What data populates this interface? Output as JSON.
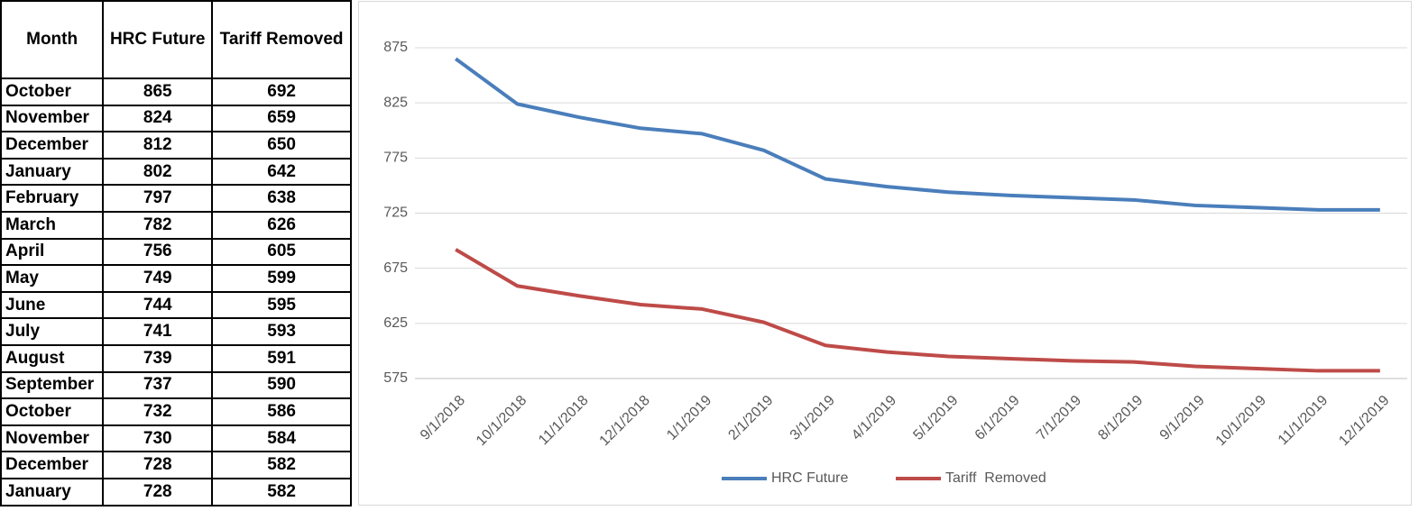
{
  "table": {
    "header": [
      "Month",
      "HRC Future",
      "Tariff Removed"
    ],
    "rows": [
      [
        "October",
        "865",
        "692"
      ],
      [
        "November",
        "824",
        "659"
      ],
      [
        "December",
        "812",
        "650"
      ],
      [
        "January",
        "802",
        "642"
      ],
      [
        "February",
        "797",
        "638"
      ],
      [
        "March",
        "782",
        "626"
      ],
      [
        "April",
        "756",
        "605"
      ],
      [
        "May",
        "749",
        "599"
      ],
      [
        "June",
        "744",
        "595"
      ],
      [
        "July",
        "741",
        "593"
      ],
      [
        "August",
        "739",
        "591"
      ],
      [
        "September",
        "737",
        "590"
      ],
      [
        "October",
        "732",
        "586"
      ],
      [
        "November",
        "730",
        "584"
      ],
      [
        "December",
        "728",
        "582"
      ],
      [
        "January",
        "728",
        "582"
      ]
    ]
  },
  "chart_data": {
    "type": "line",
    "categories": [
      "9/1/2018",
      "10/1/2018",
      "11/1/2018",
      "12/1/2018",
      "1/1/2019",
      "2/1/2019",
      "3/1/2019",
      "4/1/2019",
      "5/1/2019",
      "6/1/2019",
      "7/1/2019",
      "8/1/2019",
      "9/1/2019",
      "10/1/2019",
      "11/1/2019",
      "12/1/2019"
    ],
    "series": [
      {
        "name": "HRC Future",
        "color": "#4a7ebb",
        "values": [
          865,
          824,
          812,
          802,
          797,
          782,
          756,
          749,
          744,
          741,
          739,
          737,
          732,
          730,
          728,
          728
        ]
      },
      {
        "name": "Tariff  Removed",
        "color": "#be4b48",
        "values": [
          692,
          659,
          650,
          642,
          638,
          626,
          605,
          599,
          595,
          593,
          591,
          590,
          586,
          584,
          582,
          582
        ]
      }
    ],
    "ylim": [
      575,
      875
    ],
    "yticks": [
      575,
      625,
      675,
      725,
      775,
      825,
      875
    ],
    "grid": true,
    "legend": "bottom"
  }
}
